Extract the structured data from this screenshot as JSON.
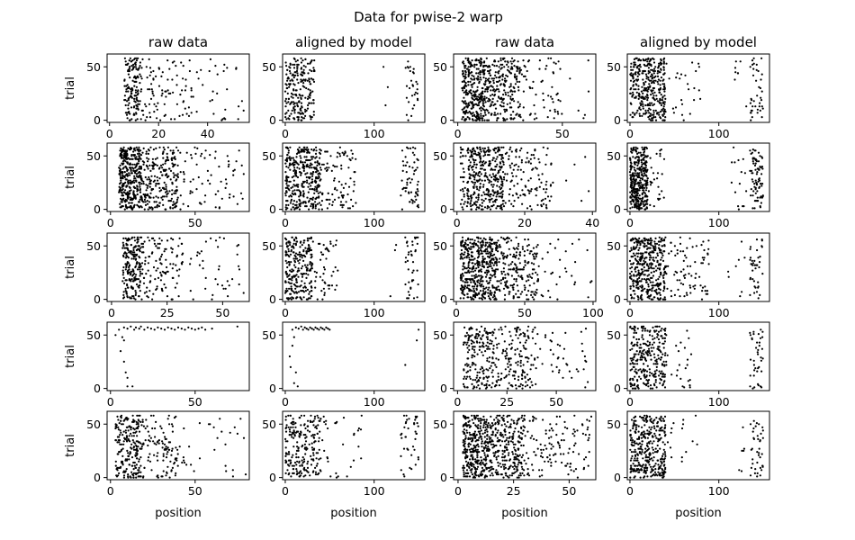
{
  "chart_data": {
    "type": "scatter",
    "title": "Data for pwise-2 warp",
    "column_titles": [
      "raw data",
      "aligned by model",
      "raw data",
      "aligned by model"
    ],
    "ylabel": "trial",
    "xlabel": "position",
    "y_ticks": [
      0,
      50
    ],
    "ylim": [
      -2,
      62
    ],
    "marker_color": "#000000",
    "panels": [
      {
        "row": 0,
        "col": 0,
        "xlim": [
          -1,
          57
        ],
        "xticks": [
          0,
          20,
          40
        ],
        "clusters": [
          {
            "x": [
              6,
              13
            ],
            "n": 150
          },
          {
            "x": [
              13,
              18
            ],
            "n": 30
          },
          {
            "x": [
              18,
              34
            ],
            "n": 60
          },
          {
            "x": [
              34,
              56
            ],
            "n": 30
          }
        ]
      },
      {
        "row": 0,
        "col": 1,
        "xlim": [
          -3,
          157
        ],
        "xticks": [
          0,
          100
        ],
        "clusters": [
          {
            "x": [
              0,
              20
            ],
            "n": 150
          },
          {
            "x": [
              20,
              33
            ],
            "n": 70
          },
          {
            "x": [
              106,
              120
            ],
            "n": 3
          },
          {
            "x": [
              135,
              150
            ],
            "n": 30
          }
        ]
      },
      {
        "row": 0,
        "col": 2,
        "xlim": [
          -2,
          66
        ],
        "xticks": [
          0,
          50
        ],
        "clusters": [
          {
            "x": [
              2,
              13
            ],
            "n": 300
          },
          {
            "x": [
              13,
              30
            ],
            "n": 250
          },
          {
            "x": [
              30,
              50
            ],
            "n": 60
          },
          {
            "x": [
              50,
              63
            ],
            "n": 6
          }
        ]
      },
      {
        "row": 0,
        "col": 3,
        "xlim": [
          -3,
          157
        ],
        "xticks": [
          0,
          100
        ],
        "clusters": [
          {
            "x": [
              0,
              40
            ],
            "n": 350
          },
          {
            "x": [
              40,
              80
            ],
            "n": 25
          },
          {
            "x": [
              118,
              132
            ],
            "n": 8
          },
          {
            "x": [
              135,
              150
            ],
            "n": 40
          }
        ]
      },
      {
        "row": 1,
        "col": 0,
        "xlim": [
          -2,
          82
        ],
        "xticks": [
          0,
          50
        ],
        "clusters": [
          {
            "x": [
              5,
              18
            ],
            "n": 350
          },
          {
            "x": [
              18,
              40
            ],
            "n": 250
          },
          {
            "x": [
              40,
              80
            ],
            "n": 70
          }
        ]
      },
      {
        "row": 1,
        "col": 1,
        "xlim": [
          -3,
          157
        ],
        "xticks": [
          0,
          100
        ],
        "clusters": [
          {
            "x": [
              0,
              40
            ],
            "n": 350
          },
          {
            "x": [
              40,
              80
            ],
            "n": 90
          },
          {
            "x": [
              130,
              150
            ],
            "n": 60
          }
        ]
      },
      {
        "row": 1,
        "col": 2,
        "xlim": [
          -1,
          41
        ],
        "xticks": [
          0,
          20,
          40
        ],
        "clusters": [
          {
            "x": [
              1,
              3
            ],
            "n": 30
          },
          {
            "x": [
              3,
              14
            ],
            "n": 350
          },
          {
            "x": [
              14,
              28
            ],
            "n": 120
          },
          {
            "x": [
              28,
              40
            ],
            "n": 6
          }
        ]
      },
      {
        "row": 1,
        "col": 3,
        "xlim": [
          -3,
          157
        ],
        "xticks": [
          0,
          100
        ],
        "clusters": [
          {
            "x": [
              0,
              20
            ],
            "n": 350
          },
          {
            "x": [
              20,
              40
            ],
            "n": 30
          },
          {
            "x": [
              110,
              132
            ],
            "n": 15
          },
          {
            "x": [
              135,
              150
            ],
            "n": 80
          }
        ]
      },
      {
        "row": 2,
        "col": 0,
        "xlim": [
          -2,
          62
        ],
        "xticks": [
          0,
          25,
          50
        ],
        "clusters": [
          {
            "x": [
              5,
              13
            ],
            "n": 200
          },
          {
            "x": [
              13,
              32
            ],
            "n": 120
          },
          {
            "x": [
              32,
              60
            ],
            "n": 40
          }
        ]
      },
      {
        "row": 2,
        "col": 1,
        "xlim": [
          -3,
          157
        ],
        "xticks": [
          0,
          100
        ],
        "clusters": [
          {
            "x": [
              0,
              30
            ],
            "n": 250
          },
          {
            "x": [
              30,
              60
            ],
            "n": 50
          },
          {
            "x": [
              118,
              130
            ],
            "n": 3
          },
          {
            "x": [
              135,
              150
            ],
            "n": 40
          }
        ]
      },
      {
        "row": 2,
        "col": 2,
        "xlim": [
          -2,
          102
        ],
        "xticks": [
          0,
          50,
          100
        ],
        "clusters": [
          {
            "x": [
              3,
              30
            ],
            "n": 450
          },
          {
            "x": [
              30,
              60
            ],
            "n": 200
          },
          {
            "x": [
              60,
              100
            ],
            "n": 30
          }
        ]
      },
      {
        "row": 2,
        "col": 3,
        "xlim": [
          -3,
          157
        ],
        "xticks": [
          0,
          100
        ],
        "clusters": [
          {
            "x": [
              0,
              40
            ],
            "n": 400
          },
          {
            "x": [
              40,
              90
            ],
            "n": 80
          },
          {
            "x": [
              110,
              132
            ],
            "n": 8
          },
          {
            "x": [
              135,
              150
            ],
            "n": 40
          }
        ]
      },
      {
        "row": 3,
        "col": 0,
        "xlim": [
          -2,
          82
        ],
        "xticks": [
          0,
          50
        ],
        "points": [
          [
            5,
            55
          ],
          [
            8,
            57
          ],
          [
            10,
            56
          ],
          [
            12,
            58
          ],
          [
            14,
            55
          ],
          [
            15,
            57
          ],
          [
            17,
            56
          ],
          [
            18,
            58
          ],
          [
            20,
            55
          ],
          [
            22,
            57
          ],
          [
            24,
            56
          ],
          [
            26,
            55
          ],
          [
            28,
            57
          ],
          [
            30,
            56
          ],
          [
            32,
            55
          ],
          [
            34,
            57
          ],
          [
            36,
            56
          ],
          [
            38,
            55
          ],
          [
            40,
            57
          ],
          [
            42,
            56
          ],
          [
            44,
            55
          ],
          [
            46,
            57
          ],
          [
            48,
            56
          ],
          [
            50,
            55
          ],
          [
            52,
            56
          ],
          [
            54,
            57
          ],
          [
            56,
            55
          ],
          [
            60,
            56
          ],
          [
            75,
            58
          ],
          [
            7,
            48
          ],
          [
            8,
            45
          ],
          [
            6,
            35
          ],
          [
            8,
            25
          ],
          [
            9,
            15
          ],
          [
            10,
            10
          ],
          [
            10,
            2
          ],
          [
            13,
            2
          ],
          [
            3,
            50
          ]
        ]
      },
      {
        "row": 3,
        "col": 1,
        "xlim": [
          -3,
          157
        ],
        "xticks": [
          0,
          100
        ],
        "points": [
          [
            8,
            55
          ],
          [
            12,
            57
          ],
          [
            15,
            56
          ],
          [
            18,
            58
          ],
          [
            20,
            55
          ],
          [
            22,
            57
          ],
          [
            24,
            56
          ],
          [
            26,
            55
          ],
          [
            28,
            57
          ],
          [
            30,
            56
          ],
          [
            32,
            55
          ],
          [
            34,
            57
          ],
          [
            36,
            56
          ],
          [
            38,
            55
          ],
          [
            40,
            57
          ],
          [
            42,
            56
          ],
          [
            44,
            55
          ],
          [
            46,
            57
          ],
          [
            48,
            56
          ],
          [
            50,
            55
          ],
          [
            10,
            48
          ],
          [
            8,
            40
          ],
          [
            5,
            30
          ],
          [
            6,
            20
          ],
          [
            12,
            15
          ],
          [
            10,
            5
          ],
          [
            14,
            2
          ],
          [
            135,
            22
          ],
          [
            148,
            45
          ],
          [
            150,
            55
          ]
        ]
      },
      {
        "row": 3,
        "col": 2,
        "xlim": [
          -2,
          70
        ],
        "xticks": [
          0,
          25,
          50
        ],
        "clusters": [
          {
            "x": [
              3,
              20
            ],
            "n": 200
          },
          {
            "x": [
              20,
              40
            ],
            "n": 150
          },
          {
            "x": [
              40,
              66
            ],
            "n": 40
          }
        ]
      },
      {
        "row": 3,
        "col": 3,
        "xlim": [
          -3,
          157
        ],
        "xticks": [
          0,
          100
        ],
        "clusters": [
          {
            "x": [
              0,
              40
            ],
            "n": 280
          },
          {
            "x": [
              40,
              70
            ],
            "n": 25
          },
          {
            "x": [
              135,
              150
            ],
            "n": 40
          }
        ]
      },
      {
        "row": 4,
        "col": 0,
        "xlim": [
          -2,
          82
        ],
        "xticks": [
          0,
          50
        ],
        "clusters": [
          {
            "x": [
              3,
              18
            ],
            "n": 220
          },
          {
            "x": [
              18,
              40
            ],
            "n": 110
          },
          {
            "x": [
              40,
              80
            ],
            "n": 30
          }
        ]
      },
      {
        "row": 4,
        "col": 1,
        "xlim": [
          -3,
          157
        ],
        "xticks": [
          0,
          100
        ],
        "clusters": [
          {
            "x": [
              0,
              40
            ],
            "n": 220
          },
          {
            "x": [
              40,
              90
            ],
            "n": 30
          },
          {
            "x": [
              130,
              150
            ],
            "n": 40
          }
        ]
      },
      {
        "row": 4,
        "col": 2,
        "xlim": [
          -2,
          62
        ],
        "xticks": [
          0,
          25,
          50
        ],
        "clusters": [
          {
            "x": [
              2,
              15
            ],
            "n": 350
          },
          {
            "x": [
              15,
              30
            ],
            "n": 250
          },
          {
            "x": [
              30,
              60
            ],
            "n": 120
          }
        ]
      },
      {
        "row": 4,
        "col": 3,
        "xlim": [
          -3,
          157
        ],
        "xticks": [
          0,
          100
        ],
        "clusters": [
          {
            "x": [
              0,
              40
            ],
            "n": 350
          },
          {
            "x": [
              40,
              80
            ],
            "n": 15
          },
          {
            "x": [
              118,
              132
            ],
            "n": 6
          },
          {
            "x": [
              135,
              150
            ],
            "n": 40
          }
        ]
      }
    ]
  }
}
